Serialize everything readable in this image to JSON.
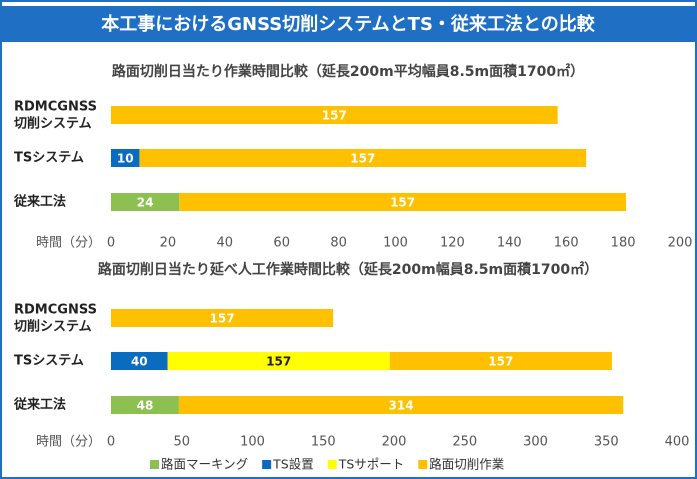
{
  "header": {
    "title": "本工事におけるGNSS切削システムとTS・従来工法との比較"
  },
  "chart_data": [
    {
      "type": "stacked-barh",
      "title": "路面切削日当たり作業時間比較（延長200m平均幅員8.5m面積1700㎡）",
      "categories": [
        "RDMCGNSS\n切削システム",
        "TSシステム",
        "従来工法"
      ],
      "series": [
        {
          "name": "路面マーキング",
          "color": "#8cc152",
          "values": [
            null,
            null,
            24
          ]
        },
        {
          "name": "TS設置",
          "color": "#0a6cbf",
          "values": [
            null,
            10,
            null
          ]
        },
        {
          "name": "路面切削作業",
          "color": "#ffc000",
          "values": [
            157,
            157,
            157
          ]
        }
      ],
      "xlabel": "時間（分）",
      "xlim": [
        0,
        200
      ],
      "xticks": [
        0,
        20,
        40,
        60,
        80,
        100,
        120,
        140,
        160,
        180,
        200
      ]
    },
    {
      "type": "stacked-barh",
      "title": "路面切削日当たり延べ人工作業時間比較（延長200m幅員8.5m面積1700㎡）",
      "categories": [
        "RDMCGNSS\n切削システム",
        "TSシステム",
        "従来工法"
      ],
      "series": [
        {
          "name": "路面マーキング",
          "color": "#8cc152",
          "values": [
            null,
            null,
            48
          ]
        },
        {
          "name": "TS設置",
          "color": "#0a6cbf",
          "values": [
            null,
            40,
            null
          ]
        },
        {
          "name": "TSサポート",
          "color": "#ffff00",
          "values": [
            null,
            157,
            null
          ]
        },
        {
          "name": "路面切削作業",
          "color": "#ffc000",
          "values": [
            157,
            157,
            314
          ]
        }
      ],
      "xlabel": "時間（分）",
      "xlim": [
        0,
        400
      ],
      "xticks": [
        0,
        50,
        100,
        150,
        200,
        250,
        300,
        350,
        400
      ],
      "legend": "bottom"
    }
  ]
}
